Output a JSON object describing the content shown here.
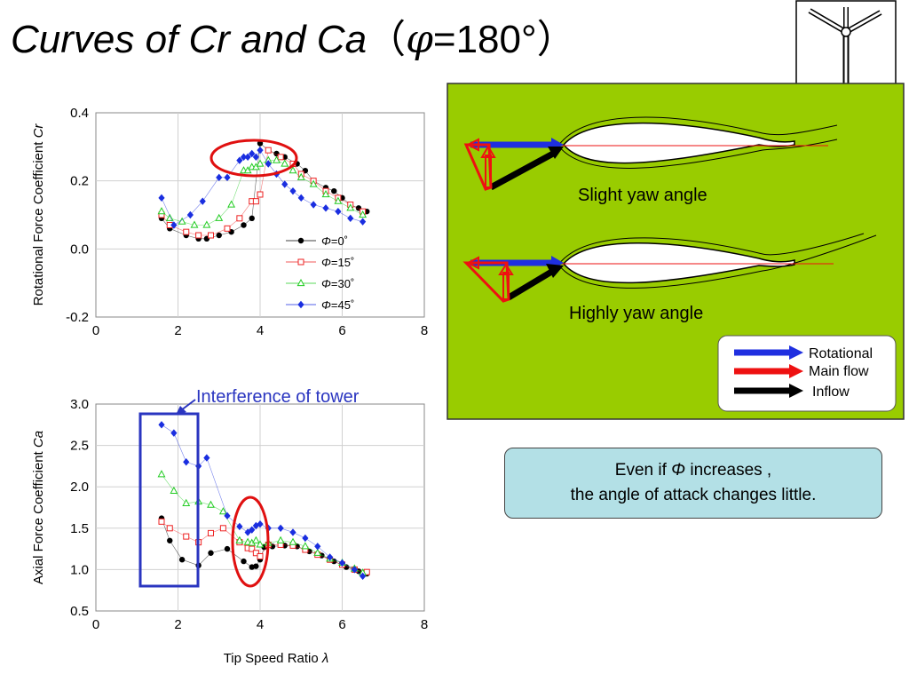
{
  "slide": {
    "title_prefix": "Curves of Cr and Ca",
    "title_paren_open": "（",
    "title_phi": "φ",
    "title_value": "=180°",
    "title_paren_close": "）"
  },
  "annotation": {
    "interference_label": "Interference of tower"
  },
  "yaw_panel": {
    "slight_label": "Slight yaw angle",
    "highly_label": "Highly yaw angle",
    "legend": [
      {
        "label": "Rotational",
        "color": "#1f2fe0"
      },
      {
        "label": "Main flow",
        "color": "#ee1111"
      },
      {
        "label": "Inflow",
        "color": "#000000"
      }
    ],
    "background": "#99cc00"
  },
  "caption": {
    "line1_prefix": "Even if ",
    "line1_phi": "Φ",
    "line1_suffix": " increases ,",
    "line2": "the angle of attack changes little."
  },
  "chart_data": [
    {
      "type": "scatter",
      "ylabel_main": "Rotational Force Coefficient ",
      "ylabel_var": "Cr",
      "xlabel": "",
      "xlim": [
        0,
        8
      ],
      "ylim": [
        -0.2,
        0.4
      ],
      "xticks": [
        "0",
        "2",
        "4",
        "6",
        "8"
      ],
      "yticks": [
        "-0.2",
        "0.0",
        "0.2",
        "0.4"
      ],
      "grid": true,
      "legend_position": "lower-right",
      "series": [
        {
          "name": "Φ=0˚",
          "phi_text": "Φ",
          "eq": "=0˚",
          "color": "#000000",
          "marker": "circle",
          "x": [
            1.6,
            1.8,
            2.2,
            2.5,
            2.7,
            3.0,
            3.3,
            3.6,
            3.8,
            4.0,
            4.2,
            4.4,
            4.6,
            4.9,
            5.1,
            5.3,
            5.6,
            5.8,
            6.0,
            6.2,
            6.4,
            6.6
          ],
          "y": [
            0.09,
            0.06,
            0.04,
            0.03,
            0.03,
            0.04,
            0.05,
            0.07,
            0.09,
            0.31,
            0.29,
            0.28,
            0.27,
            0.25,
            0.23,
            0.2,
            0.18,
            0.17,
            0.15,
            0.13,
            0.12,
            0.11
          ]
        },
        {
          "name": "Φ=15˚",
          "phi_text": "Φ",
          "eq": "=15˚",
          "color": "#ee2222",
          "marker": "square",
          "x": [
            1.6,
            1.8,
            2.2,
            2.5,
            2.8,
            3.2,
            3.5,
            3.8,
            3.9,
            4.0,
            4.2,
            4.5,
            4.8,
            5.0,
            5.3,
            5.6,
            5.9,
            6.2,
            6.5
          ],
          "y": [
            0.1,
            0.07,
            0.05,
            0.04,
            0.04,
            0.06,
            0.09,
            0.14,
            0.14,
            0.16,
            0.29,
            0.27,
            0.25,
            0.22,
            0.2,
            0.17,
            0.15,
            0.13,
            0.11
          ]
        },
        {
          "name": "Φ=30˚",
          "phi_text": "Φ",
          "eq": "=30˚",
          "color": "#22cc22",
          "marker": "triangle",
          "x": [
            1.6,
            1.8,
            2.1,
            2.4,
            2.7,
            3.0,
            3.3,
            3.6,
            3.7,
            3.8,
            3.9,
            4.0,
            4.2,
            4.4,
            4.6,
            4.8,
            5.0,
            5.3,
            5.6,
            5.9,
            6.2,
            6.5
          ],
          "y": [
            0.11,
            0.09,
            0.08,
            0.07,
            0.07,
            0.09,
            0.13,
            0.23,
            0.23,
            0.24,
            0.24,
            0.25,
            0.26,
            0.26,
            0.25,
            0.23,
            0.21,
            0.19,
            0.16,
            0.14,
            0.12,
            0.1
          ]
        },
        {
          "name": "Φ=45˚",
          "phi_text": "Φ",
          "eq": "=45˚",
          "color": "#1a2ee0",
          "marker": "diamond",
          "x": [
            1.6,
            1.9,
            2.3,
            2.6,
            3.0,
            3.2,
            3.5,
            3.6,
            3.7,
            3.8,
            3.9,
            4.0,
            4.2,
            4.4,
            4.6,
            4.8,
            5.0,
            5.3,
            5.6,
            5.9,
            6.2,
            6.5
          ],
          "y": [
            0.15,
            0.07,
            0.1,
            0.14,
            0.21,
            0.21,
            0.26,
            0.27,
            0.27,
            0.28,
            0.27,
            0.29,
            0.25,
            0.22,
            0.19,
            0.17,
            0.15,
            0.13,
            0.12,
            0.11,
            0.09,
            0.08
          ]
        }
      ]
    },
    {
      "type": "scatter",
      "ylabel_main": "Axial Force Coefficient ",
      "ylabel_var": "Ca",
      "xlabel_main": "Tip Speed Ratio ",
      "xlabel_var": "λ",
      "xlim": [
        0,
        8
      ],
      "ylim": [
        0.5,
        3.0
      ],
      "xticks": [
        "0",
        "2",
        "4",
        "6",
        "8"
      ],
      "yticks": [
        "0.5",
        "1.0",
        "1.5",
        "2.0",
        "2.5",
        "3.0"
      ],
      "grid": true,
      "series": [
        {
          "name": "Φ=0˚",
          "color": "#000000",
          "marker": "circle",
          "x": [
            1.6,
            1.8,
            2.1,
            2.5,
            2.8,
            3.2,
            3.6,
            3.8,
            3.9,
            4.0,
            4.1,
            4.3,
            4.6,
            4.9,
            5.2,
            5.5,
            5.8,
            6.1,
            6.4,
            6.6
          ],
          "y": [
            1.62,
            1.35,
            1.12,
            1.05,
            1.2,
            1.25,
            1.1,
            1.03,
            1.04,
            1.12,
            1.27,
            1.28,
            1.29,
            1.28,
            1.22,
            1.17,
            1.1,
            1.03,
            0.98,
            0.95
          ]
        },
        {
          "name": "Φ=15˚",
          "color": "#ee2222",
          "marker": "square",
          "x": [
            1.6,
            1.8,
            2.2,
            2.5,
            2.8,
            3.1,
            3.5,
            3.7,
            3.8,
            3.9,
            4.0,
            4.2,
            4.5,
            4.8,
            5.1,
            5.4,
            5.7,
            6.0,
            6.3,
            6.6
          ],
          "y": [
            1.58,
            1.5,
            1.4,
            1.33,
            1.44,
            1.5,
            1.33,
            1.26,
            1.25,
            1.2,
            1.16,
            1.3,
            1.3,
            1.29,
            1.24,
            1.18,
            1.12,
            1.06,
            1.0,
            0.97
          ]
        },
        {
          "name": "Φ=30˚",
          "color": "#22cc22",
          "marker": "triangle",
          "x": [
            1.6,
            1.9,
            2.2,
            2.5,
            2.8,
            3.1,
            3.5,
            3.7,
            3.8,
            3.9,
            4.0,
            4.2,
            4.5,
            4.8,
            5.1,
            5.4,
            5.7,
            6.0,
            6.3,
            6.5
          ],
          "y": [
            2.15,
            1.95,
            1.8,
            1.82,
            1.78,
            1.7,
            1.35,
            1.33,
            1.32,
            1.35,
            1.3,
            1.32,
            1.35,
            1.33,
            1.28,
            1.2,
            1.13,
            1.08,
            1.01,
            0.96
          ]
        },
        {
          "name": "Φ=45˚",
          "color": "#1a2ee0",
          "marker": "diamond",
          "x": [
            1.6,
            1.9,
            2.2,
            2.5,
            2.7,
            3.2,
            3.5,
            3.7,
            3.8,
            3.9,
            4.0,
            4.2,
            4.5,
            4.8,
            5.1,
            5.4,
            5.7,
            6.0,
            6.3,
            6.5
          ],
          "y": [
            2.75,
            2.65,
            2.3,
            2.25,
            2.35,
            1.65,
            1.52,
            1.45,
            1.48,
            1.53,
            1.55,
            1.5,
            1.5,
            1.45,
            1.38,
            1.28,
            1.15,
            1.08,
            1.0,
            0.92
          ]
        }
      ]
    }
  ]
}
